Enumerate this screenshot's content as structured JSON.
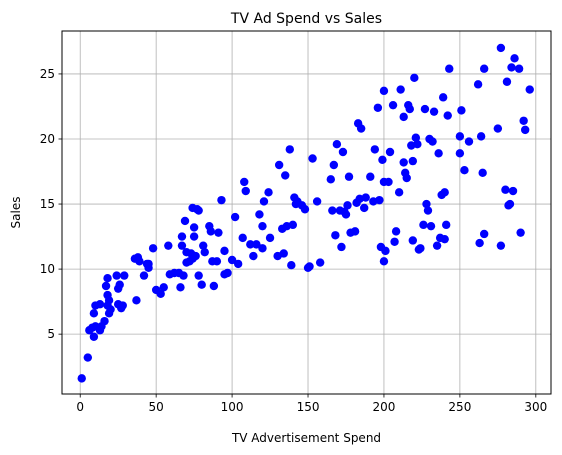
{
  "chart_data": {
    "type": "scatter",
    "title": "TV Ad Spend vs Sales",
    "xlabel": "TV Advertisement Spend",
    "ylabel": "Sales",
    "xlim": [
      -12,
      310
    ],
    "ylim": [
      0.4,
      28.3
    ],
    "xticks": [
      0,
      50,
      100,
      150,
      200,
      250,
      300
    ],
    "yticks": [
      5,
      10,
      15,
      20,
      25
    ],
    "grid": true,
    "legend": "none",
    "marker_color": "#0000ff",
    "points": [
      [
        1,
        1.6
      ],
      [
        5,
        3.2
      ],
      [
        6,
        5.3
      ],
      [
        8,
        5.5
      ],
      [
        9,
        6.6
      ],
      [
        9,
        4.8
      ],
      [
        10,
        5.6
      ],
      [
        10,
        7.2
      ],
      [
        13,
        5.3
      ],
      [
        13,
        7.3
      ],
      [
        14,
        5.6
      ],
      [
        16,
        6
      ],
      [
        17,
        8.7
      ],
      [
        18,
        9.3
      ],
      [
        18,
        8
      ],
      [
        18,
        7.2
      ],
      [
        19,
        6.6
      ],
      [
        19,
        7.6
      ],
      [
        20,
        6.9
      ],
      [
        24,
        9.5
      ],
      [
        25,
        8.5
      ],
      [
        25,
        7.3
      ],
      [
        26,
        8.8
      ],
      [
        27,
        7
      ],
      [
        28,
        7.2
      ],
      [
        29,
        9.5
      ],
      [
        36,
        10.8
      ],
      [
        37,
        7.6
      ],
      [
        38,
        10.9
      ],
      [
        39,
        10.6
      ],
      [
        42,
        9.5
      ],
      [
        44,
        10.4
      ],
      [
        45,
        10.1
      ],
      [
        45,
        10.4
      ],
      [
        48,
        11.6
      ],
      [
        50,
        8.4
      ],
      [
        53,
        8.1
      ],
      [
        55,
        8.6
      ],
      [
        58,
        11.8
      ],
      [
        59,
        9.6
      ],
      [
        62,
        9.7
      ],
      [
        65,
        9.7
      ],
      [
        66,
        8.6
      ],
      [
        67,
        11.8
      ],
      [
        67,
        12.5
      ],
      [
        68,
        9.5
      ],
      [
        69,
        13.7
      ],
      [
        70,
        11.3
      ],
      [
        70,
        10.5
      ],
      [
        72,
        10.6
      ],
      [
        73,
        11.2
      ],
      [
        74,
        10.8
      ],
      [
        74,
        14.7
      ],
      [
        75,
        13.2
      ],
      [
        75,
        12.5
      ],
      [
        76,
        11
      ],
      [
        77,
        14.6
      ],
      [
        78,
        9.5
      ],
      [
        78,
        14.5
      ],
      [
        80,
        8.8
      ],
      [
        81,
        11.8
      ],
      [
        82,
        11.3
      ],
      [
        85,
        13.3
      ],
      [
        86,
        12.9
      ],
      [
        87,
        10.6
      ],
      [
        88,
        8.7
      ],
      [
        90,
        10.6
      ],
      [
        91,
        12.8
      ],
      [
        93,
        15.3
      ],
      [
        95,
        11.4
      ],
      [
        95,
        9.6
      ],
      [
        97,
        9.7
      ],
      [
        100,
        10.7
      ],
      [
        102,
        14
      ],
      [
        104,
        10.4
      ],
      [
        107,
        12.4
      ],
      [
        108,
        16.7
      ],
      [
        109,
        16
      ],
      [
        112,
        11.9
      ],
      [
        114,
        11
      ],
      [
        116,
        11.9
      ],
      [
        118,
        14.2
      ],
      [
        120,
        11.6
      ],
      [
        120,
        13.3
      ],
      [
        121,
        15.2
      ],
      [
        124,
        15.9
      ],
      [
        125,
        12.4
      ],
      [
        130,
        11
      ],
      [
        131,
        18
      ],
      [
        133,
        13.1
      ],
      [
        134,
        11.2
      ],
      [
        135,
        17.2
      ],
      [
        136,
        13.3
      ],
      [
        138,
        19.2
      ],
      [
        139,
        10.3
      ],
      [
        140,
        13.4
      ],
      [
        141,
        15.5
      ],
      [
        142,
        15
      ],
      [
        143,
        15.2
      ],
      [
        146,
        14.9
      ],
      [
        148,
        14.6
      ],
      [
        150,
        10.1
      ],
      [
        151,
        10.2
      ],
      [
        153,
        18.5
      ],
      [
        156,
        15.2
      ],
      [
        158,
        10.5
      ],
      [
        165,
        16.9
      ],
      [
        166,
        14.5
      ],
      [
        167,
        18
      ],
      [
        168,
        12.6
      ],
      [
        169,
        19.6
      ],
      [
        171,
        14.5
      ],
      [
        172,
        11.7
      ],
      [
        173,
        19
      ],
      [
        174,
        14.4
      ],
      [
        175,
        14.2
      ],
      [
        176,
        14.9
      ],
      [
        177,
        17.1
      ],
      [
        178,
        12.8
      ],
      [
        181,
        12.9
      ],
      [
        182,
        15.1
      ],
      [
        183,
        21.2
      ],
      [
        184,
        15.4
      ],
      [
        185,
        20.8
      ],
      [
        187,
        14.7
      ],
      [
        188,
        15.5
      ],
      [
        191,
        17.1
      ],
      [
        193,
        15.2
      ],
      [
        194,
        19.2
      ],
      [
        196,
        22.4
      ],
      [
        197,
        15.3
      ],
      [
        198,
        11.7
      ],
      [
        199,
        18.4
      ],
      [
        200,
        23.7
      ],
      [
        200,
        16.7
      ],
      [
        200,
        10.6
      ],
      [
        201,
        11.4
      ],
      [
        203,
        16.7
      ],
      [
        204,
        19
      ],
      [
        206,
        22.6
      ],
      [
        207,
        12.1
      ],
      [
        208,
        12.9
      ],
      [
        210,
        15.9
      ],
      [
        211,
        23.8
      ],
      [
        213,
        18.2
      ],
      [
        213,
        21.7
      ],
      [
        214,
        17.4
      ],
      [
        215,
        17
      ],
      [
        216,
        22.6
      ],
      [
        217,
        22.3
      ],
      [
        218,
        19.5
      ],
      [
        219,
        12.2
      ],
      [
        219,
        18.3
      ],
      [
        220,
        24.7
      ],
      [
        221,
        20.1
      ],
      [
        222,
        19.6
      ],
      [
        223,
        11.5
      ],
      [
        224,
        11.6
      ],
      [
        226,
        13.4
      ],
      [
        227,
        22.3
      ],
      [
        228,
        15
      ],
      [
        229,
        14.5
      ],
      [
        230,
        20
      ],
      [
        231,
        13.3
      ],
      [
        232,
        19.8
      ],
      [
        233,
        22.1
      ],
      [
        235,
        11.8
      ],
      [
        236,
        18.9
      ],
      [
        237,
        12.4
      ],
      [
        238,
        15.7
      ],
      [
        239,
        23.2
      ],
      [
        240,
        15.9
      ],
      [
        240,
        12.3
      ],
      [
        241,
        13.4
      ],
      [
        242,
        21.8
      ],
      [
        243,
        25.4
      ],
      [
        250,
        20.2
      ],
      [
        250,
        18.9
      ],
      [
        251,
        22.2
      ],
      [
        253,
        17.6
      ],
      [
        256,
        19.8
      ],
      [
        262,
        24.2
      ],
      [
        263,
        12
      ],
      [
        264,
        20.2
      ],
      [
        265,
        17.4
      ],
      [
        266,
        12.7
      ],
      [
        266,
        25.4
      ],
      [
        275,
        20.8
      ],
      [
        277,
        11.8
      ],
      [
        277,
        27
      ],
      [
        280,
        16.1
      ],
      [
        281,
        24.4
      ],
      [
        282,
        14.9
      ],
      [
        283,
        15
      ],
      [
        284,
        25.5
      ],
      [
        285,
        16
      ],
      [
        286,
        26.2
      ],
      [
        289,
        25.4
      ],
      [
        290,
        12.8
      ],
      [
        292,
        21.4
      ],
      [
        293,
        20.7
      ],
      [
        296,
        23.8
      ]
    ]
  }
}
